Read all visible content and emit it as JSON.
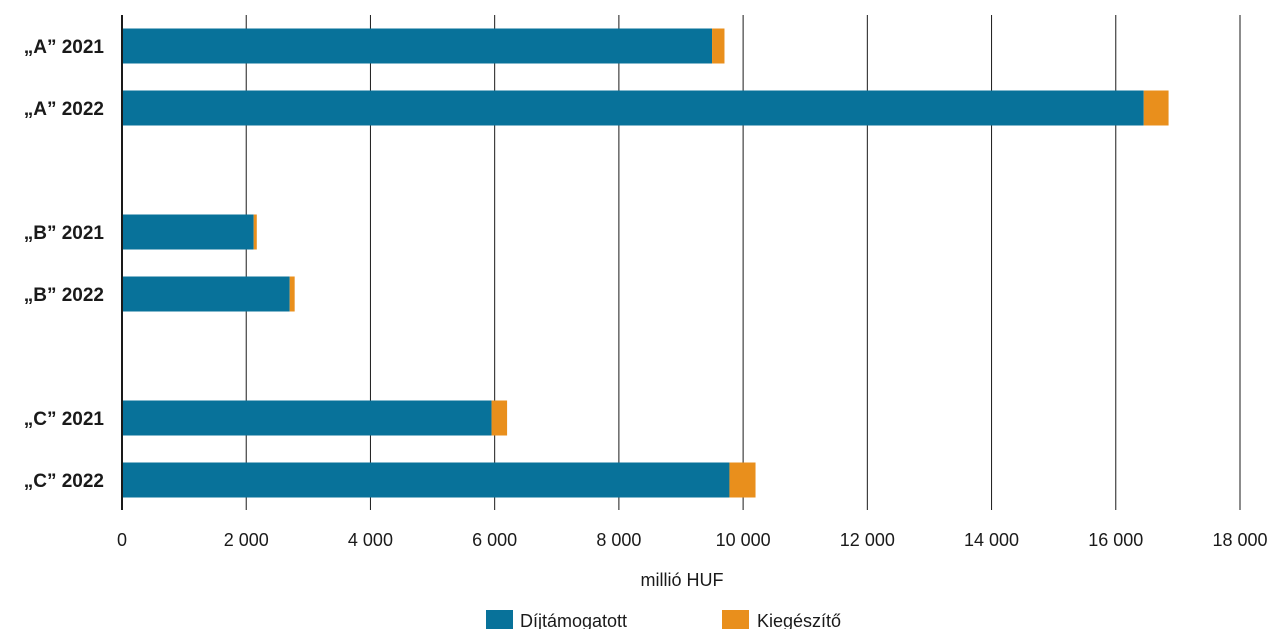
{
  "chart_data": {
    "type": "bar",
    "orientation": "horizontal",
    "stacked": true,
    "categories": [
      "„A” 2021",
      "„A” 2022",
      "„B” 2021",
      "„B” 2022",
      "„C” 2021",
      "„C” 2022"
    ],
    "series": [
      {
        "name": "Díjtámogatott",
        "color": "#08729a",
        "values": [
          9500,
          16450,
          2120,
          2700,
          5950,
          9780
        ]
      },
      {
        "name": "Kiegészítő",
        "color": "#e98f1c",
        "values": [
          200,
          400,
          50,
          80,
          250,
          420
        ]
      }
    ],
    "xlabel": "millió HUF",
    "xlim": [
      0,
      18000
    ],
    "xticks": [
      0,
      2000,
      4000,
      6000,
      8000,
      10000,
      12000,
      14000,
      16000,
      18000
    ],
    "xtick_labels": [
      "0",
      "2 000",
      "4 000",
      "6 000",
      "8 000",
      "10 000",
      "12 000",
      "14 000",
      "16 000",
      "18 000"
    ],
    "grid": "vertical",
    "legend_position": "bottom"
  }
}
